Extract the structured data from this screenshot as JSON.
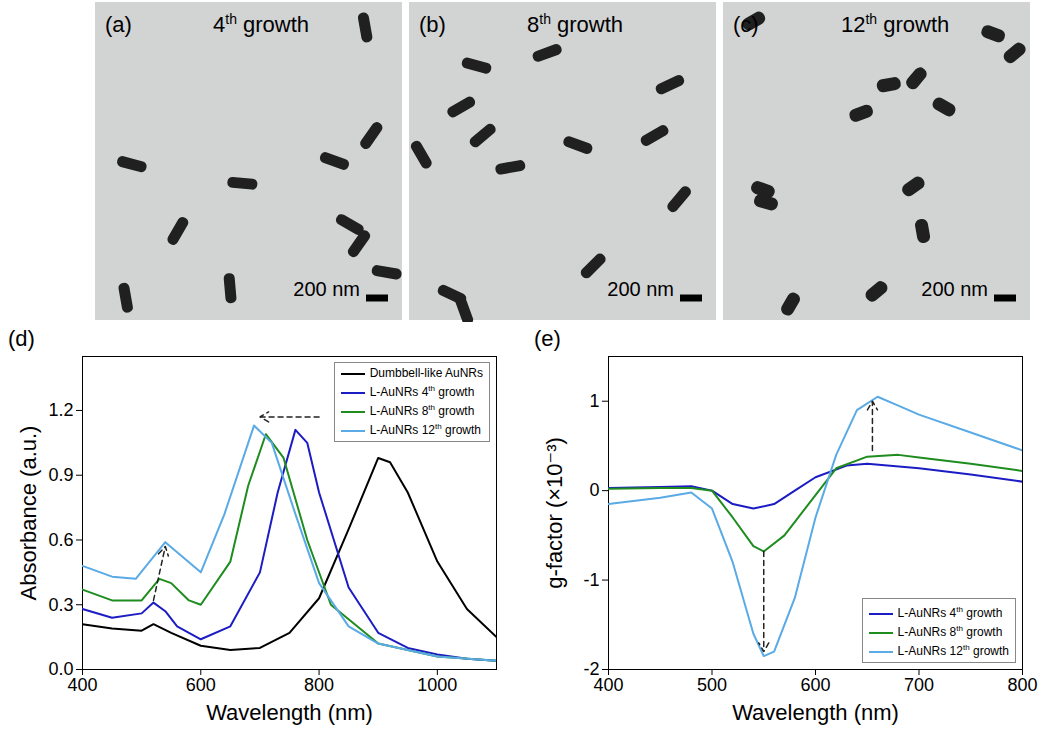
{
  "chart_data": [
    {
      "type": "image",
      "panel": "(a)",
      "title": "4th growth",
      "scale_bar": "200 nm"
    },
    {
      "type": "image",
      "panel": "(b)",
      "title": "8th growth",
      "scale_bar": "200 nm"
    },
    {
      "type": "image",
      "panel": "(c)",
      "title": "12th growth",
      "scale_bar": "200 nm"
    },
    {
      "type": "line",
      "panel": "(d)",
      "xlabel": "Wavelength (nm)",
      "ylabel": "Absorbance (a.u.)",
      "xlim": [
        400,
        1100
      ],
      "ylim": [
        0,
        1.45
      ],
      "xticks": [
        400,
        600,
        800,
        1000
      ],
      "yticks": [
        {
          "value": 0,
          "label": "0.0"
        },
        {
          "value": 0.3,
          "label": "0.3"
        },
        {
          "value": 0.6,
          "label": "0.6"
        },
        {
          "value": 0.9,
          "label": "0.9"
        },
        {
          "value": 1.2,
          "label": "1.2"
        }
      ],
      "grid": false,
      "legend": "upper right",
      "series": [
        {
          "name": "Dumbbell-like AuNRs",
          "color": "#000000",
          "x": [
            400,
            450,
            500,
            520,
            550,
            600,
            650,
            700,
            750,
            800,
            850,
            900,
            920,
            950,
            1000,
            1050,
            1100
          ],
          "values": [
            0.21,
            0.19,
            0.18,
            0.21,
            0.17,
            0.11,
            0.09,
            0.1,
            0.17,
            0.33,
            0.65,
            0.98,
            0.96,
            0.82,
            0.5,
            0.28,
            0.15
          ]
        },
        {
          "name": "L-AuNRs 4th growth",
          "color": "#1c1cc4",
          "x": [
            400,
            450,
            500,
            520,
            540,
            560,
            600,
            650,
            700,
            730,
            760,
            780,
            800,
            850,
            900,
            950,
            1000,
            1050,
            1100
          ],
          "values": [
            0.28,
            0.24,
            0.26,
            0.31,
            0.27,
            0.2,
            0.14,
            0.2,
            0.45,
            0.82,
            1.11,
            1.05,
            0.82,
            0.38,
            0.17,
            0.1,
            0.07,
            0.05,
            0.04
          ]
        },
        {
          "name": "L-AuNRs 8th growth",
          "color": "#1e8c1e",
          "x": [
            400,
            450,
            500,
            530,
            550,
            580,
            600,
            650,
            680,
            710,
            740,
            780,
            820,
            900,
            1000,
            1100
          ],
          "values": [
            0.37,
            0.32,
            0.32,
            0.42,
            0.4,
            0.32,
            0.3,
            0.5,
            0.85,
            1.09,
            0.98,
            0.6,
            0.3,
            0.12,
            0.06,
            0.04
          ]
        },
        {
          "name": "L-AuNRs 12th growth",
          "color": "#5aaae6",
          "x": [
            400,
            450,
            490,
            540,
            570,
            600,
            640,
            690,
            720,
            760,
            800,
            850,
            900,
            1000,
            1100
          ],
          "values": [
            0.48,
            0.43,
            0.42,
            0.59,
            0.52,
            0.45,
            0.72,
            1.13,
            1.05,
            0.72,
            0.4,
            0.2,
            0.12,
            0.06,
            0.04
          ]
        }
      ],
      "arrows": [
        {
          "x1": 800,
          "y1": 1.17,
          "x2": 700,
          "y2": 1.17
        },
        {
          "x1": 520,
          "y1": 0.32,
          "x2": 540,
          "y2": 0.57
        }
      ]
    },
    {
      "type": "line",
      "panel": "(e)",
      "xlabel": "Wavelength (nm)",
      "ylabel": "g-factor (×10⁻³)",
      "xlim": [
        400,
        800
      ],
      "ylim": [
        -2,
        1.5
      ],
      "xticks": [
        400,
        500,
        600,
        700,
        800
      ],
      "yticks": [
        -2,
        -1,
        0,
        1
      ],
      "grid": false,
      "legend": "lower right",
      "series": [
        {
          "name": "L-AuNRs 4th growth",
          "color": "#1c1cc4",
          "x": [
            400,
            450,
            480,
            500,
            520,
            540,
            560,
            580,
            600,
            630,
            650,
            700,
            750,
            800
          ],
          "values": [
            0.03,
            0.04,
            0.05,
            0,
            -0.15,
            -0.2,
            -0.15,
            0,
            0.15,
            0.28,
            0.3,
            0.25,
            0.18,
            0.1
          ]
        },
        {
          "name": "L-AuNRs 8th growth",
          "color": "#1e8c1e",
          "x": [
            400,
            450,
            480,
            500,
            520,
            540,
            550,
            570,
            600,
            620,
            650,
            680,
            700,
            750,
            800
          ],
          "values": [
            0.02,
            0.03,
            0.03,
            0,
            -0.3,
            -0.62,
            -0.68,
            -0.5,
            -0.05,
            0.25,
            0.38,
            0.4,
            0.37,
            0.3,
            0.22
          ]
        },
        {
          "name": "L-AuNRs 12th growth",
          "color": "#5aaae6",
          "x": [
            400,
            450,
            480,
            500,
            520,
            540,
            550,
            560,
            580,
            600,
            620,
            640,
            660,
            680,
            700,
            750,
            800
          ],
          "values": [
            -0.15,
            -0.08,
            -0.02,
            -0.2,
            -0.8,
            -1.6,
            -1.85,
            -1.8,
            -1.2,
            -0.3,
            0.4,
            0.9,
            1.05,
            0.95,
            0.85,
            0.65,
            0.45
          ]
        }
      ],
      "arrows": [
        {
          "x1": 550,
          "y1": -0.68,
          "x2": 550,
          "y2": -1.8
        },
        {
          "x1": 655,
          "y1": 0.45,
          "x2": 655,
          "y2": 1.0
        }
      ]
    }
  ]
}
